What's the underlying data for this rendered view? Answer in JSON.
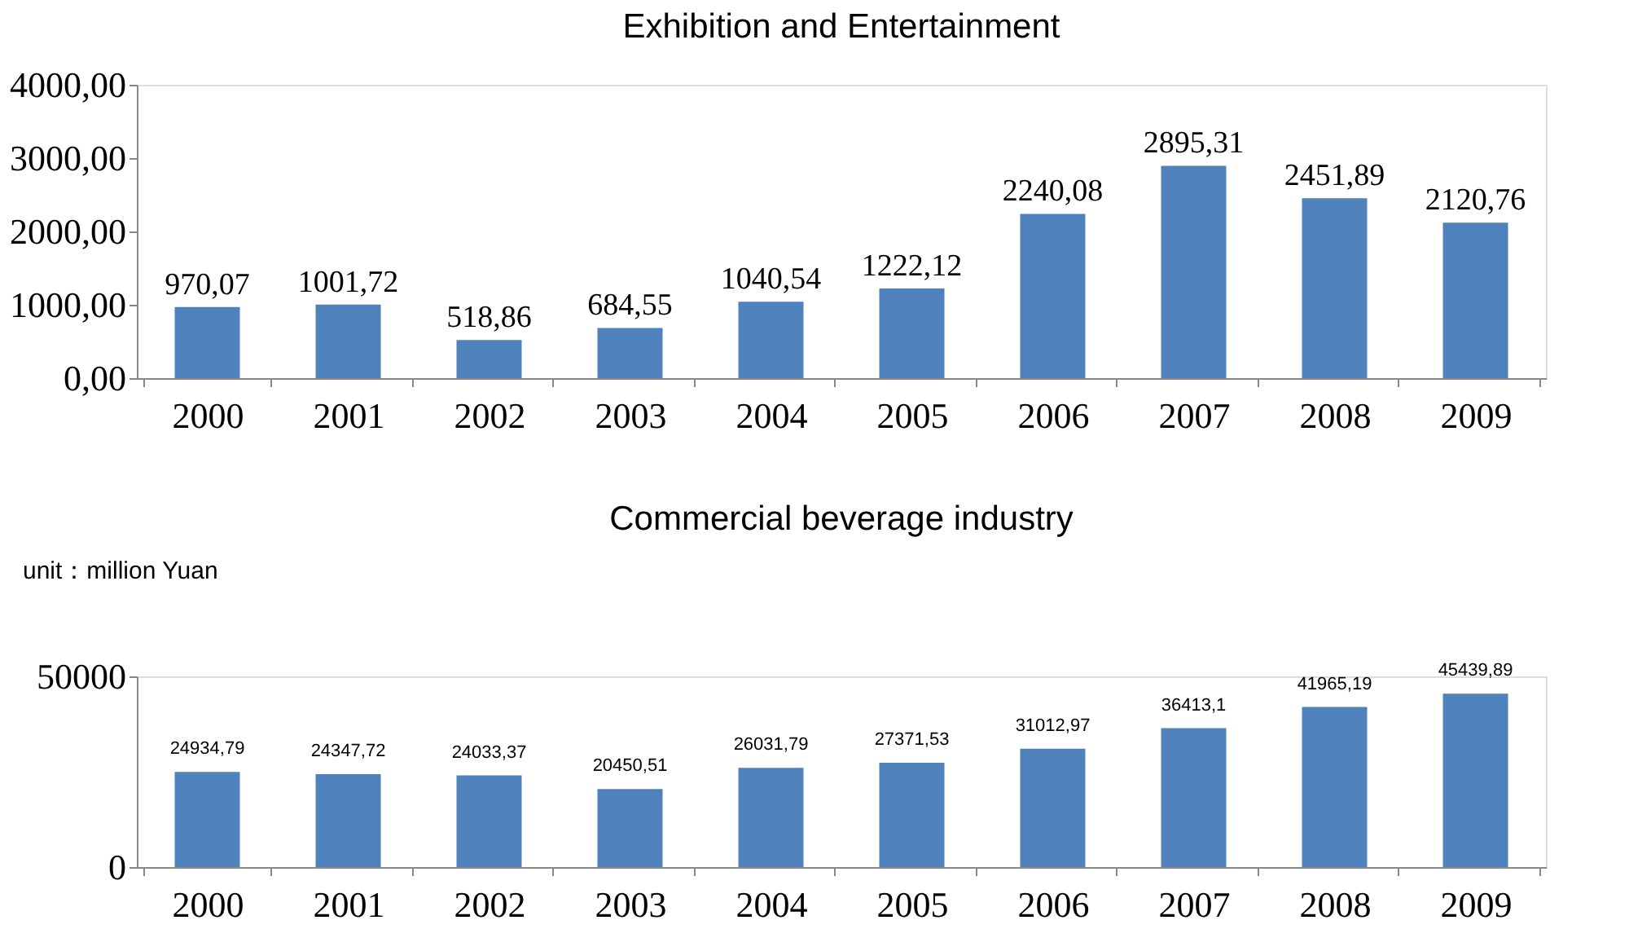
{
  "chart_data": [
    {
      "type": "bar",
      "title": "Exhibition and Entertainment",
      "categories": [
        "2000",
        "2001",
        "2002",
        "2003",
        "2004",
        "2005",
        "2006",
        "2007",
        "2008",
        "2009"
      ],
      "values": [
        970.07,
        1001.72,
        518.86,
        684.55,
        1040.54,
        1222.12,
        2240.08,
        2895.31,
        2451.89,
        2120.76
      ],
      "value_labels": [
        "970,07",
        "1001,72",
        "518,86",
        "684,55",
        "1040,54",
        "1222,12",
        "2240,08",
        "2895,31",
        "2451,89",
        "2120,76"
      ],
      "color": "#4f81bd",
      "ylim": [
        0,
        4000
      ],
      "yticks": [
        {
          "value": 0,
          "label": "0,00"
        },
        {
          "value": 1000,
          "label": "1000,00"
        },
        {
          "value": 2000,
          "label": "2000,00"
        },
        {
          "value": 3000,
          "label": "3000,00"
        },
        {
          "value": 4000,
          "label": "4000,00"
        }
      ],
      "grid": false
    },
    {
      "type": "bar",
      "title": "Commercial beverage industry",
      "annotations": [
        "unit：million Yuan"
      ],
      "categories": [
        "2000",
        "2001",
        "2002",
        "2003",
        "2004",
        "2005",
        "2006",
        "2007",
        "2008",
        "2009"
      ],
      "values": [
        24934.79,
        24347.72,
        24033.37,
        20450.51,
        26031.79,
        27371.53,
        31012.97,
        36413.1,
        41965.19,
        45439.89
      ],
      "value_labels": [
        "24934,79",
        "24347,72",
        "24033,37",
        "20450,51",
        "26031,79",
        "27371,53",
        "31012,97",
        "36413,1",
        "41965,19",
        "45439,89"
      ],
      "color": "#4f81bd",
      "ylim": [
        0,
        50000
      ],
      "yticks": [
        0,
        50000
      ],
      "grid": false
    }
  ]
}
